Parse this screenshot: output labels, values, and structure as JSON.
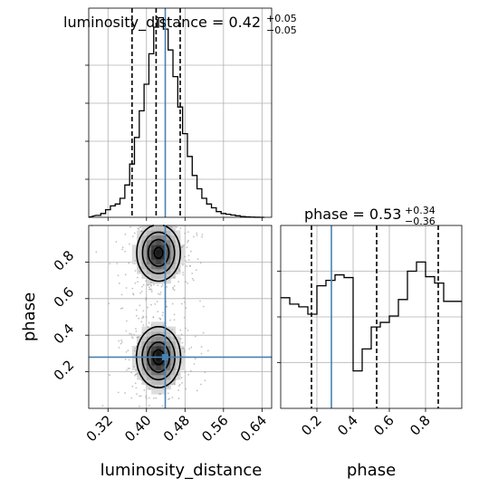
{
  "chart_data": [
    {
      "type": "histogram",
      "panel": "luminosity_distance-marginal",
      "title": {
        "main": "luminosity_distance = 0.42",
        "sup": "+0.05",
        "sub": "−0.05"
      },
      "x_range": [
        0.28,
        0.66
      ],
      "bin_edges": [
        0.295,
        0.305,
        0.315,
        0.325,
        0.335,
        0.345,
        0.355,
        0.365,
        0.375,
        0.385,
        0.395,
        0.405,
        0.415,
        0.425,
        0.435,
        0.445,
        0.455,
        0.465,
        0.475,
        0.485,
        0.495,
        0.505,
        0.515,
        0.525,
        0.535,
        0.545,
        0.555,
        0.565,
        0.575,
        0.585,
        0.595,
        0.605,
        0.615,
        0.625,
        0.635,
        0.645
      ],
      "density": [
        0.5,
        1.0,
        2.0,
        3.0,
        3.5,
        5.0,
        8.5,
        14.0,
        21.0,
        28.0,
        35.0,
        43.0,
        50.0,
        52.5,
        49.5,
        44.0,
        37.0,
        29.0,
        22.0,
        16.0,
        11.0,
        7.5,
        5.0,
        3.5,
        2.5,
        1.5,
        1.0,
        0.8,
        0.6,
        0.4,
        0.2,
        0.1,
        0.05,
        0.02,
        0.0
      ],
      "y_max": 55,
      "y_ticks": [
        10,
        20,
        30,
        40
      ],
      "quantiles": [
        0.37,
        0.42,
        0.47
      ],
      "truth": 0.439
    },
    {
      "type": "histogram",
      "panel": "phase-marginal",
      "title": {
        "main": "phase = 0.53",
        "sup": "+0.34",
        "sub": "−0.36"
      },
      "x_range": [
        0.0,
        1.0
      ],
      "bin_edges": [
        0.0,
        0.05,
        0.1,
        0.15,
        0.2,
        0.25,
        0.3,
        0.35,
        0.4,
        0.45,
        0.5,
        0.55,
        0.6,
        0.65,
        0.7,
        0.75,
        0.8,
        0.85,
        0.9,
        0.95,
        1.0
      ],
      "density": [
        1.21,
        1.14,
        1.11,
        1.03,
        1.34,
        1.4,
        1.46,
        1.43,
        0.41,
        0.65,
        0.89,
        0.94,
        1.01,
        1.19,
        1.5,
        1.6,
        1.44,
        1.37,
        1.17,
        1.17
      ],
      "y_max": 2.0,
      "y_ticks": [
        0.5,
        1.0,
        1.5
      ],
      "quantiles": [
        0.17,
        0.53,
        0.87
      ],
      "truth": 0.28
    },
    {
      "type": "heatmap",
      "panel": "joint-2d",
      "x_label": "luminosity_distance",
      "y_label": "phase",
      "x_range": [
        0.28,
        0.66
      ],
      "y_range": [
        0.0,
        1.0
      ],
      "x_ticks": [
        0.32,
        0.4,
        0.48,
        0.56,
        0.64
      ],
      "y_ticks": [
        0.2,
        0.4,
        0.6,
        0.8
      ],
      "truth": [
        0.439,
        0.28
      ],
      "modes": [
        {
          "center": [
            0.425,
            0.85
          ],
          "sigma": [
            0.022,
            0.075
          ],
          "weight": 1.0
        },
        {
          "center": [
            0.425,
            0.28
          ],
          "sigma": [
            0.022,
            0.08
          ],
          "weight": 1.05
        }
      ],
      "contour_levels": [
        0.92,
        0.62,
        0.32,
        0.12
      ],
      "grid": true
    }
  ]
}
